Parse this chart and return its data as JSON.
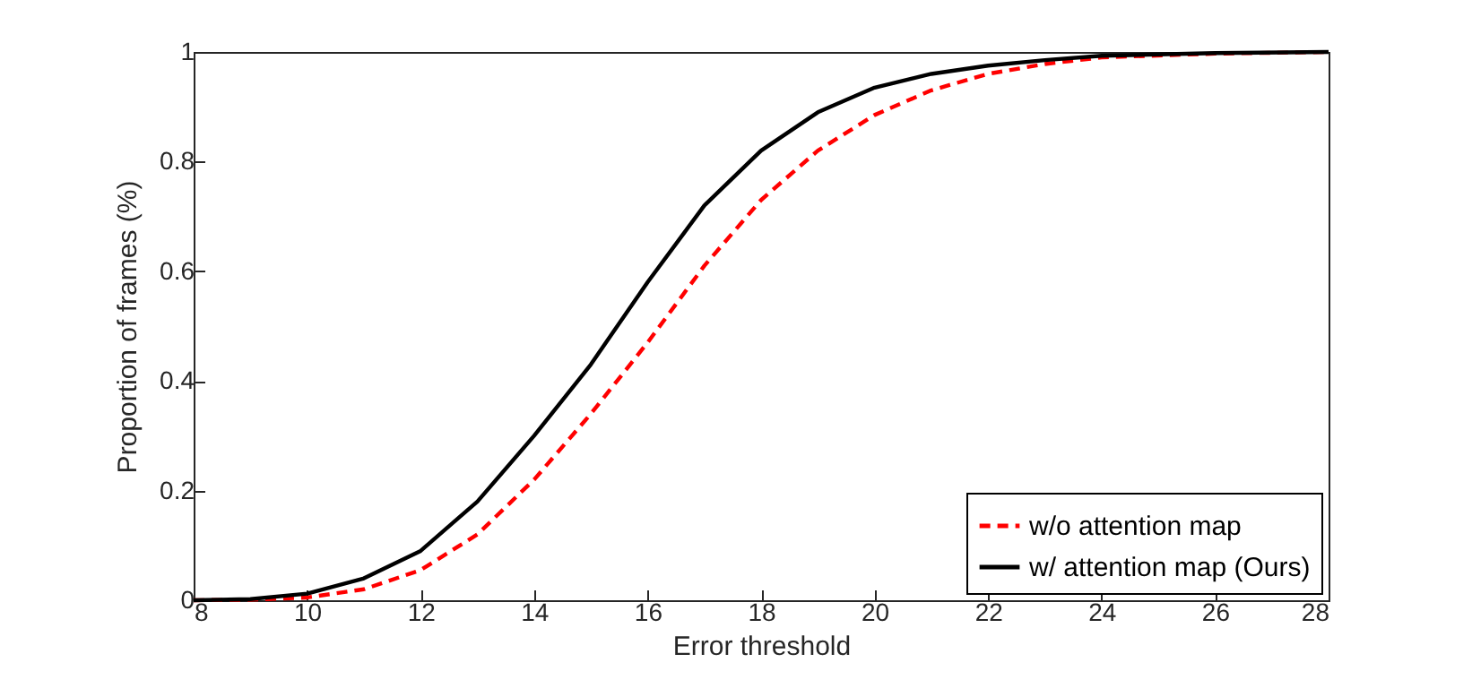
{
  "chart_data": {
    "type": "line",
    "xlabel": "Error threshold",
    "ylabel": "Proportion of frames (%)",
    "x": [
      8,
      9,
      10,
      11,
      12,
      13,
      14,
      15,
      16,
      17,
      18,
      19,
      20,
      21,
      22,
      23,
      24,
      26,
      28
    ],
    "series": [
      {
        "name": "w/o attention map",
        "color": "#ff0000",
        "line_style": "dashed",
        "values": [
          0,
          0.001,
          0.005,
          0.02,
          0.055,
          0.12,
          0.22,
          0.34,
          0.47,
          0.61,
          0.73,
          0.82,
          0.885,
          0.93,
          0.96,
          0.978,
          0.99,
          0.997,
          1
        ]
      },
      {
        "name": "w/ attention map (Ours)",
        "color": "#000000",
        "line_style": "solid",
        "values": [
          0,
          0.002,
          0.012,
          0.04,
          0.09,
          0.18,
          0.3,
          0.43,
          0.58,
          0.72,
          0.82,
          0.89,
          0.935,
          0.96,
          0.975,
          0.985,
          0.993,
          0.998,
          1
        ]
      }
    ],
    "xlim": [
      8,
      28
    ],
    "xticks": [
      8,
      10,
      12,
      14,
      16,
      18,
      20,
      22,
      24,
      26,
      28
    ],
    "ylim": [
      0,
      1
    ],
    "yticks": [
      0,
      0.2,
      0.4,
      0.6,
      0.8,
      1
    ],
    "grid": false,
    "legend": "bottom right",
    "marker": "none"
  }
}
